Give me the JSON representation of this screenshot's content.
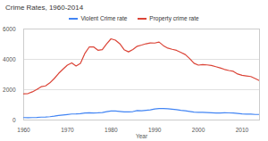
{
  "chart_data": {
    "type": "line",
    "title": "Crime Rates, 1960-2014",
    "x_label": "Year",
    "x": [
      1960,
      1961,
      1962,
      1963,
      1964,
      1965,
      1966,
      1967,
      1968,
      1969,
      1970,
      1971,
      1972,
      1973,
      1974,
      1975,
      1976,
      1977,
      1978,
      1979,
      1980,
      1981,
      1982,
      1983,
      1984,
      1985,
      1986,
      1987,
      1988,
      1989,
      1990,
      1991,
      1992,
      1993,
      1994,
      1995,
      1996,
      1997,
      1998,
      1999,
      2000,
      2001,
      2002,
      2003,
      2004,
      2005,
      2006,
      2007,
      2008,
      2009,
      2010,
      2011,
      2012,
      2013,
      2014
    ],
    "series": [
      {
        "name": "Violent Crime rate",
        "color": "#4285f4",
        "values": [
          161,
          158,
          162,
          168,
          190,
          200,
          220,
          253,
          298,
          328,
          364,
          396,
          401,
          417,
          461,
          482,
          468,
          476,
          498,
          548,
          597,
          594,
          571,
          538,
          539,
          557,
          620,
          610,
          640,
          666,
          730,
          758,
          758,
          747,
          714,
          685,
          637,
          611,
          568,
          523,
          507,
          505,
          494,
          476,
          463,
          469,
          474,
          472,
          458,
          432,
          404,
          387,
          387,
          368,
          366
        ]
      },
      {
        "name": "Property crime rate",
        "color": "#db4437",
        "values": [
          1726,
          1747,
          1857,
          2012,
          2197,
          2249,
          2450,
          2736,
          3071,
          3351,
          3621,
          3768,
          3561,
          3737,
          4389,
          4811,
          4820,
          4601,
          4642,
          5017,
          5353,
          5264,
          5032,
          4637,
          4492,
          4651,
          4863,
          4940,
          5027,
          5078,
          5073,
          5140,
          4903,
          4740,
          4660,
          4591,
          4451,
          4316,
          4053,
          3744,
          3618,
          3658,
          3631,
          3591,
          3514,
          3432,
          3335,
          3264,
          3212,
          3036,
          2946,
          2905,
          2868,
          2733,
          2596
        ]
      }
    ],
    "xlim": [
      1960,
      2014
    ],
    "xticks": [
      1960,
      1970,
      1980,
      1990,
      2000,
      2010
    ],
    "ylim": [
      0,
      6000
    ],
    "yticks": [
      0,
      2000,
      4000,
      6000
    ],
    "grid": true,
    "legend": "top"
  }
}
